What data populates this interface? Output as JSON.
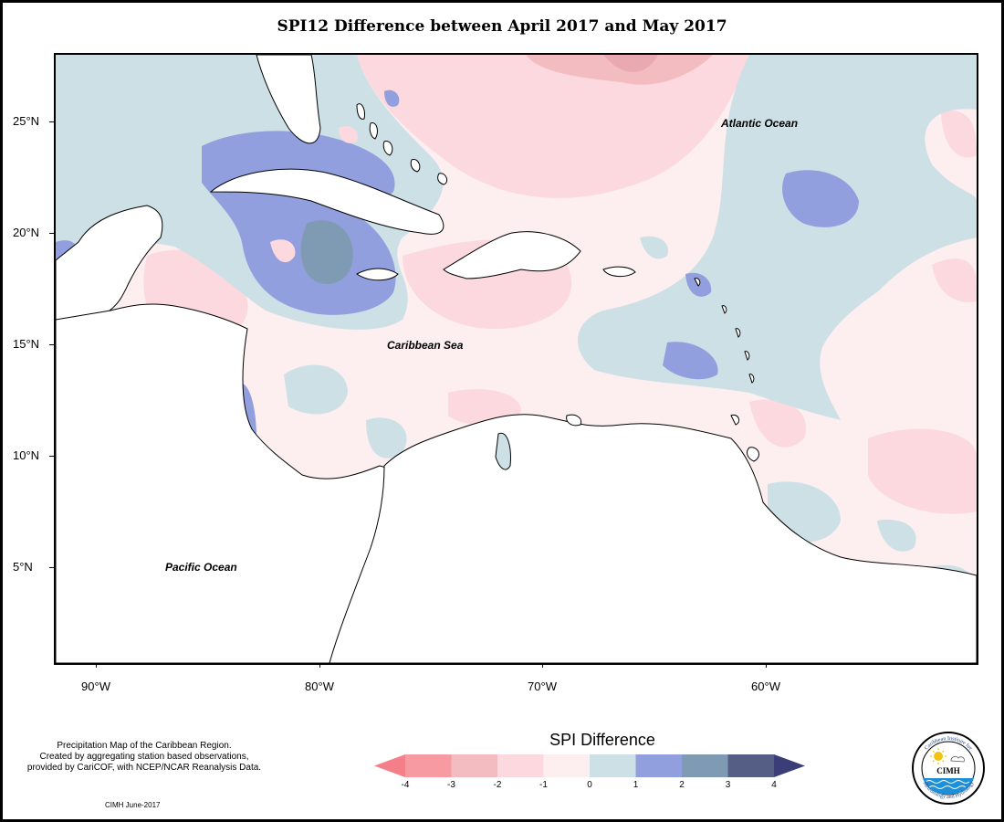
{
  "title": "SPI12 Difference between April 2017 and May 2017",
  "axes": {
    "latitude_ticks": [
      "25°N",
      "20°N",
      "15°N",
      "10°N",
      "5°N"
    ],
    "longitude_ticks": [
      "90°W",
      "80°W",
      "70°W",
      "60°W"
    ]
  },
  "map_labels": {
    "atlantic": "Atlantic Ocean",
    "caribbean": "Caribbean Sea",
    "pacific": "Pacific Ocean"
  },
  "description_lines": [
    "Precipitation Map of the Caribbean Region.",
    "Created by aggregating station based observations,",
    "provided by CariCOF, with NCEP/NCAR Reanalysis Data."
  ],
  "credit": "CIMH June-2017",
  "legend": {
    "title": "SPI Difference",
    "tick_labels": [
      "-4",
      "-3",
      "-2",
      "-1",
      "0",
      "1",
      "2",
      "3",
      "4"
    ],
    "colors": [
      "#f47f89",
      "#f79aa2",
      "#f2bcc1",
      "#fbd9de",
      "#fdeef0",
      "#cce0e6",
      "#929fde",
      "#7f9bb3",
      "#555f86",
      "#3a3d78"
    ]
  },
  "logo": {
    "name": "CIMH",
    "ring_text_top": "Caribbean Institute for",
    "ring_text_bottom": "Meteorology and Hydrology"
  }
}
